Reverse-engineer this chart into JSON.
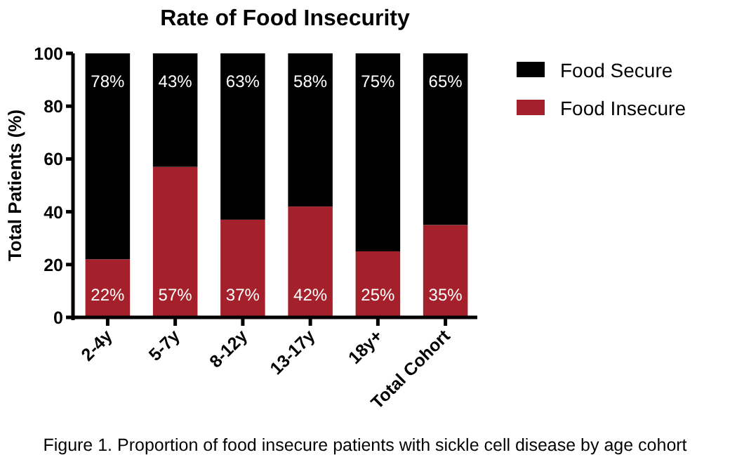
{
  "chart_data": {
    "type": "bar",
    "title": "Rate of Food Insecurity",
    "ylabel": "Total Patients (%)",
    "categories": [
      "2-4y",
      "5-7y",
      "8-12y",
      "13-17y",
      "18y+",
      "Total Cohort"
    ],
    "stacked": true,
    "series": [
      {
        "name": "Food Insecure",
        "color": "#a4202b",
        "values": [
          22,
          57,
          37,
          42,
          25,
          35
        ],
        "value_labels": [
          "22%",
          "57%",
          "37%",
          "42%",
          "25%",
          "35%"
        ]
      },
      {
        "name": "Food Secure",
        "color": "#000000",
        "values": [
          78,
          43,
          63,
          58,
          75,
          65
        ],
        "value_labels": [
          "78%",
          "43%",
          "63%",
          "58%",
          "75%",
          "65%"
        ]
      }
    ],
    "ylim": [
      0,
      100
    ],
    "yticks": [
      0,
      20,
      40,
      60,
      80,
      100
    ],
    "legend": "right",
    "annotations": [
      "Figure 1. Proportion of food insecure patients with sickle cell disease by age cohort"
    ]
  }
}
